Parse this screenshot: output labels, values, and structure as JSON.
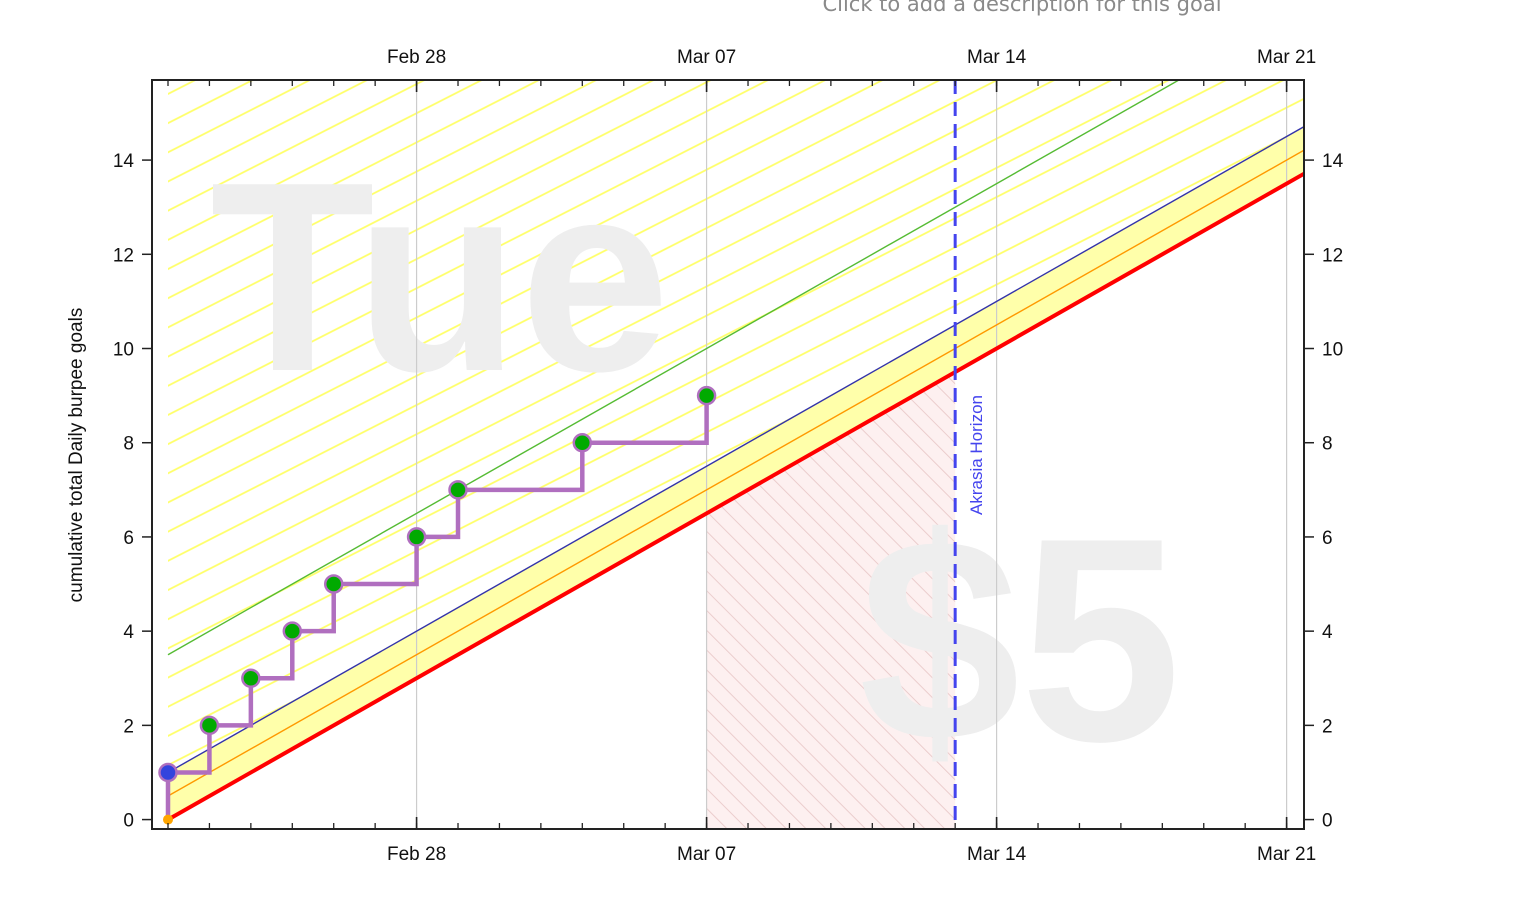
{
  "goal": {
    "description_prompt": "Click to add a description for this goal"
  },
  "chart_data": {
    "type": "line",
    "ylabel": "cumulative total Daily burpee goals",
    "x_axis": {
      "type": "date",
      "range": [
        "2021-02-22",
        "2021-03-22"
      ],
      "ticks": [
        "2021-02-28",
        "2021-03-07",
        "2021-03-14",
        "2021-03-21"
      ],
      "tick_labels": [
        "Feb 28",
        "Mar 07",
        "Mar 14",
        "Mar 21"
      ]
    },
    "y_axis": {
      "range": [
        -0.2,
        15.7
      ],
      "ticks": [
        0,
        2,
        4,
        6,
        8,
        10,
        12,
        14
      ],
      "right_axis_ticks": true
    },
    "grid": "vertical gridlines at month-week ticks",
    "watermarks": {
      "day": "Tue",
      "pledge": "$5"
    },
    "akrasia_horizon": {
      "label": "Akrasia Horizon",
      "date": "2021-03-13",
      "color": "#4444ee"
    },
    "bright_red_line": {
      "start": {
        "x": "2021-02-22",
        "y": 0
      },
      "rate_per_day": 0.5,
      "color": "#ff0000"
    },
    "lanes": [
      {
        "role": "orange",
        "offset": 0.5,
        "color": "#ff9900"
      },
      {
        "role": "blue",
        "offset": 1.0,
        "color": "#3333aa"
      },
      {
        "role": "green",
        "offset": 3.5,
        "color": "#55bb33"
      }
    ],
    "datapoints": [
      {
        "x": "2021-02-22",
        "y": 0,
        "kind": "start",
        "color": "#ffa500"
      },
      {
        "x": "2021-02-22",
        "y": 1,
        "kind": "first",
        "color": "#3344dd"
      },
      {
        "x": "2021-02-23",
        "y": 2,
        "color": "#00aa00"
      },
      {
        "x": "2021-02-24",
        "y": 3,
        "color": "#00aa00"
      },
      {
        "x": "2021-02-25",
        "y": 4,
        "color": "#00aa00"
      },
      {
        "x": "2021-02-26",
        "y": 5,
        "color": "#00aa00"
      },
      {
        "x": "2021-02-28",
        "y": 6,
        "color": "#00aa00"
      },
      {
        "x": "2021-03-01",
        "y": 7,
        "color": "#00aa00"
      },
      {
        "x": "2021-03-04",
        "y": 8,
        "color": "#00aa00"
      },
      {
        "x": "2021-03-07",
        "y": 9,
        "color": "#00aa00"
      }
    ],
    "step_line_color": "#b06fbf",
    "colors": {
      "good_zone_fill": "#ffffaa",
      "hatch": "#ffff66",
      "future_fill": "#fdf0f0",
      "grid": "#cccccc"
    }
  }
}
